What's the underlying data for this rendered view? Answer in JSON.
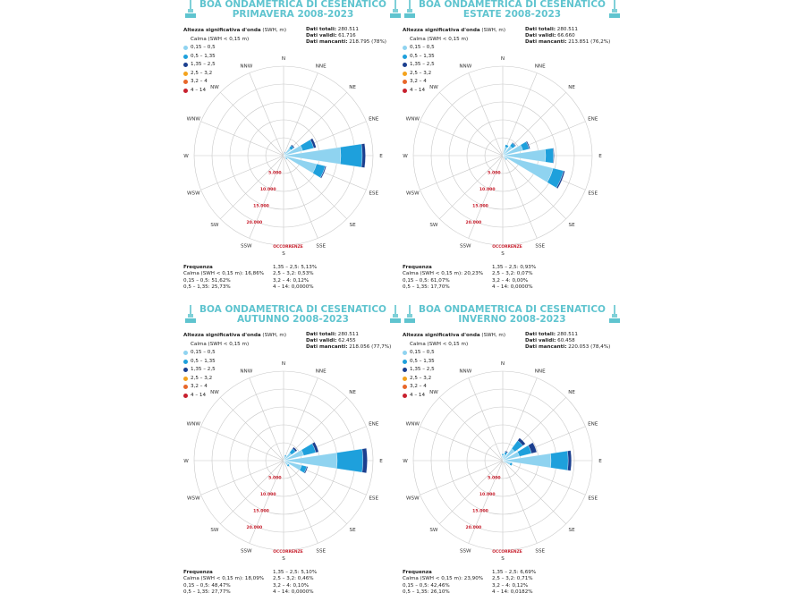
{
  "legend_title_bold": "Altezza significativa d'onda",
  "legend_title_unit": " (SWH, m)",
  "calm_label": "Calma (SWH < 0,15 m)",
  "classes": [
    {
      "label": "0,15 – 0,5",
      "color": "#8fd3f0"
    },
    {
      "label": "0,5 – 1,35",
      "color": "#1ea0dc"
    },
    {
      "label": "1,35 – 2,5",
      "color": "#1b3f8f"
    },
    {
      "label": "2,5 – 3,2",
      "color": "#f4a31d"
    },
    {
      "label": "3,2 – 4",
      "color": "#e8672a"
    },
    {
      "label": "4 – 14",
      "color": "#c8202e"
    }
  ],
  "directions": [
    "N",
    "NNE",
    "NE",
    "ENE",
    "E",
    "ESE",
    "SE",
    "SSE",
    "S",
    "SSW",
    "SW",
    "WSW",
    "W",
    "WNW",
    "NW",
    "NNW"
  ],
  "ring_labels": [
    "5.000",
    "10.000",
    "15.000",
    "20.000"
  ],
  "occ_label": "OCCORRENZE",
  "stat_labels": {
    "totali": "Dati totali:",
    "validi": "Dati validi:",
    "mancanti": "Dati mancanti:"
  },
  "freq_title": "Frequenza",
  "chart_data": [
    {
      "type": "rose",
      "title": "BOA ONDAMETRICA DI CESENATICO",
      "subtitle": "PRIMAVERA 2008-2023",
      "stats": {
        "totali": "280.511",
        "validi": "61.716",
        "mancanti": "218.795 (78%)"
      },
      "freq_left": [
        "Calma (SWH < 0,15 m): 16,86%",
        "0,15 – 0,5: 51,62%",
        "0,5 – 1,35: 25,73%"
      ],
      "freq_right": [
        "1,35 – 2,5: 5,13%",
        "2,5 – 3,2: 0,53%",
        "3,2 – 4: 0,12%",
        "4 – 14: 0,0000%"
      ],
      "rmax": 25000,
      "sectors": [
        {
          "dir": "NNE",
          "values": [
            700,
            300,
            100
          ]
        },
        {
          "dir": "NE",
          "values": [
            2600,
            900,
            300
          ]
        },
        {
          "dir": "ENE",
          "values": [
            5500,
            3200,
            700
          ]
        },
        {
          "dir": "E",
          "values": [
            16000,
            6000,
            900
          ]
        },
        {
          "dir": "ESE",
          "values": [
            9500,
            2500,
            300
          ]
        },
        {
          "dir": "SE",
          "values": [
            1000,
            300
          ]
        },
        {
          "dir": "SSE",
          "values": [
            400
          ]
        },
        {
          "dir": "S",
          "values": [
            200
          ]
        }
      ]
    },
    {
      "type": "rose",
      "title": "BOA ONDAMETRICA DI CESENATICO",
      "subtitle": "ESTATE 2008-2023",
      "stats": {
        "totali": "280.511",
        "validi": "66.660",
        "mancanti": "213.851 (76,2%)"
      },
      "freq_left": [
        "Calma (SWH < 0,15 m): 20,23%",
        "0,15 – 0,5: 61,07%",
        "0,5 – 1,35: 17,70%"
      ],
      "freq_right": [
        "1,35 – 2,5: 0,93%",
        "2,5 – 3,2: 0,07%",
        "3,2 – 4: 0,00%",
        "4 – 14: 0,0000%"
      ],
      "rmax": 25000,
      "sectors": [
        {
          "dir": "NNE",
          "values": [
            2500,
            700
          ]
        },
        {
          "dir": "NE",
          "values": [
            3400,
            1000,
            200
          ]
        },
        {
          "dir": "ENE",
          "values": [
            5800,
            1800,
            300
          ]
        },
        {
          "dir": "E",
          "values": [
            12000,
            2200,
            200
          ]
        },
        {
          "dir": "ESE",
          "values": [
            14500,
            3000,
            400
          ]
        },
        {
          "dir": "SE",
          "values": [
            1200,
            300
          ]
        },
        {
          "dir": "SSE",
          "values": [
            500
          ]
        },
        {
          "dir": "N",
          "values": [
            300
          ]
        }
      ]
    },
    {
      "type": "rose",
      "title": "BOA ONDAMETRICA DI CESENATICO",
      "subtitle": "AUTUNNO 2008-2023",
      "stats": {
        "totali": "280.511",
        "validi": "62.455",
        "mancanti": "218.056 (77,7%)"
      },
      "freq_left": [
        "Calma (SWH < 0,15 m): 18,09%",
        "0,15 – 0,5: 48,47%",
        "0,5 – 1,35: 27,77%"
      ],
      "freq_right": [
        "1,35 – 2,5: 5,10%",
        "2,5 – 3,2: 0,46%",
        "3,2 – 4: 0,10%",
        "4 – 14: 0,0000%"
      ],
      "rmax": 25000,
      "sectors": [
        {
          "dir": "NNE",
          "values": [
            1200,
            400
          ]
        },
        {
          "dir": "NE",
          "values": [
            2800,
            1400,
            500
          ]
        },
        {
          "dir": "ENE",
          "values": [
            5800,
            3500,
            800
          ]
        },
        {
          "dir": "E",
          "values": [
            15000,
            7200,
            1200
          ]
        },
        {
          "dir": "ESE",
          "values": [
            5200,
            1500,
            300
          ]
        },
        {
          "dir": "SE",
          "values": [
            1600,
            500
          ]
        },
        {
          "dir": "SSE",
          "values": [
            500
          ]
        },
        {
          "dir": "N",
          "values": [
            300
          ]
        }
      ]
    },
    {
      "type": "rose",
      "title": "BOA ONDAMETRICA DI CESENATICO",
      "subtitle": "INVERNO 2008-2023",
      "stats": {
        "totali": "280.511",
        "validi": "60.458",
        "mancanti": "220.053 (78,4%)"
      },
      "freq_left": [
        "Calma (SWH < 0,15 m): 23,90%",
        "0,15 – 0,5: 42,46%",
        "0,5 – 1,35: 26,10%"
      ],
      "freq_right": [
        "1,35 – 2,5: 6,69%",
        "2,5 – 3,2: 0,71%",
        "3,2 – 4: 0,12%",
        "4 – 14: 0,0182%"
      ],
      "rmax": 25000,
      "sectors": [
        {
          "dir": "N",
          "values": [
            1500,
            400
          ]
        },
        {
          "dir": "NNE",
          "values": [
            1800,
            700,
            300
          ]
        },
        {
          "dir": "NE",
          "values": [
            4200,
            2800,
            900
          ]
        },
        {
          "dir": "ENE",
          "values": [
            4800,
            3500,
            1500
          ]
        },
        {
          "dir": "E",
          "values": [
            13500,
            4800,
            900
          ]
        },
        {
          "dir": "ESE",
          "values": [
            2200,
            600
          ]
        },
        {
          "dir": "SE",
          "values": [
            700
          ]
        },
        {
          "dir": "SSE",
          "values": [
            300
          ]
        }
      ]
    }
  ]
}
